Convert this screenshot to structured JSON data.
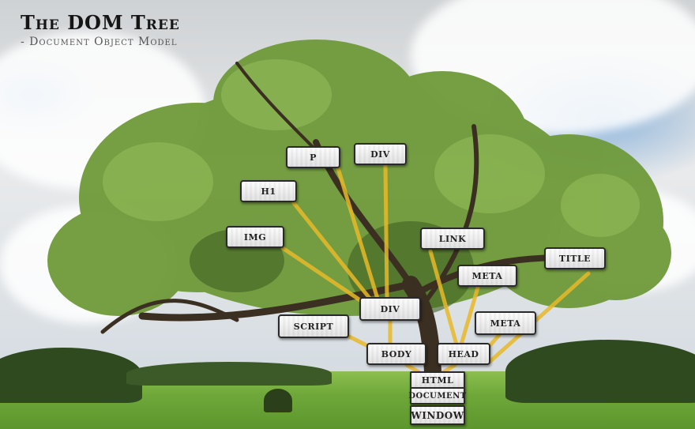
{
  "header": {
    "title": "The DOM Tree",
    "subtitle": "- Document Object Model"
  },
  "nodes": {
    "p": "P",
    "div_top": "DIV",
    "h1": "H1",
    "img": "IMG",
    "link": "LINK",
    "meta_upper": "META",
    "title": "TITLE",
    "div_main": "DIV",
    "script": "SCRIPT",
    "meta_lower": "META",
    "body": "BODY",
    "head": "HEAD",
    "html": "HTML",
    "document": "DOCUMENT",
    "window": "WINDOW"
  },
  "colors": {
    "connector": "#e8b928",
    "node_border": "#2a2a2a",
    "foliage": "#6f9a3a",
    "grass": "#6fa83a"
  }
}
